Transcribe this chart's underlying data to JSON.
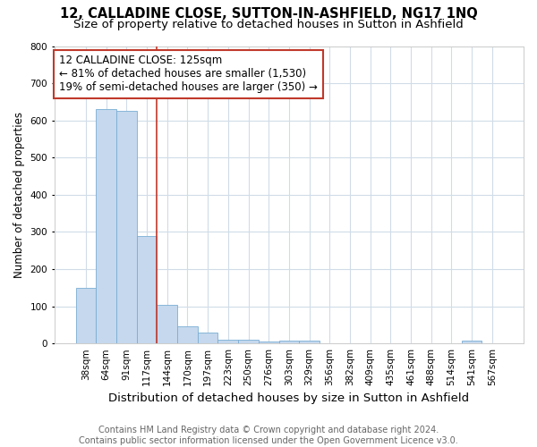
{
  "title": "12, CALLADINE CLOSE, SUTTON-IN-ASHFIELD, NG17 1NQ",
  "subtitle": "Size of property relative to detached houses in Sutton in Ashfield",
  "xlabel": "Distribution of detached houses by size in Sutton in Ashfield",
  "ylabel": "Number of detached properties",
  "footnote": "Contains HM Land Registry data © Crown copyright and database right 2024.\nContains public sector information licensed under the Open Government Licence v3.0.",
  "bin_labels": [
    "38sqm",
    "64sqm",
    "91sqm",
    "117sqm",
    "144sqm",
    "170sqm",
    "197sqm",
    "223sqm",
    "250sqm",
    "276sqm",
    "303sqm",
    "329sqm",
    "356sqm",
    "382sqm",
    "409sqm",
    "435sqm",
    "461sqm",
    "488sqm",
    "514sqm",
    "541sqm",
    "567sqm"
  ],
  "bar_heights": [
    150,
    630,
    625,
    290,
    103,
    45,
    30,
    10,
    10,
    5,
    8,
    8,
    0,
    0,
    0,
    0,
    0,
    0,
    0,
    7,
    0
  ],
  "bar_color": "#c5d8ed",
  "bar_edge_color": "#7aadd4",
  "vline_x": 3.5,
  "vline_color": "#c0392b",
  "annotation_text": "12 CALLADINE CLOSE: 125sqm\n← 81% of detached houses are smaller (1,530)\n19% of semi-detached houses are larger (350) →",
  "annotation_box_color": "#c0392b",
  "annotation_text_color": "black",
  "ylim": [
    0,
    800
  ],
  "yticks": [
    0,
    100,
    200,
    300,
    400,
    500,
    600,
    700,
    800
  ],
  "title_fontsize": 10.5,
  "subtitle_fontsize": 9.5,
  "xlabel_fontsize": 9.5,
  "ylabel_fontsize": 8.5,
  "tick_fontsize": 7.5,
  "annotation_fontsize": 8.5,
  "footnote_fontsize": 7,
  "background_color": "#ffffff",
  "grid_color": "#d0dce8"
}
